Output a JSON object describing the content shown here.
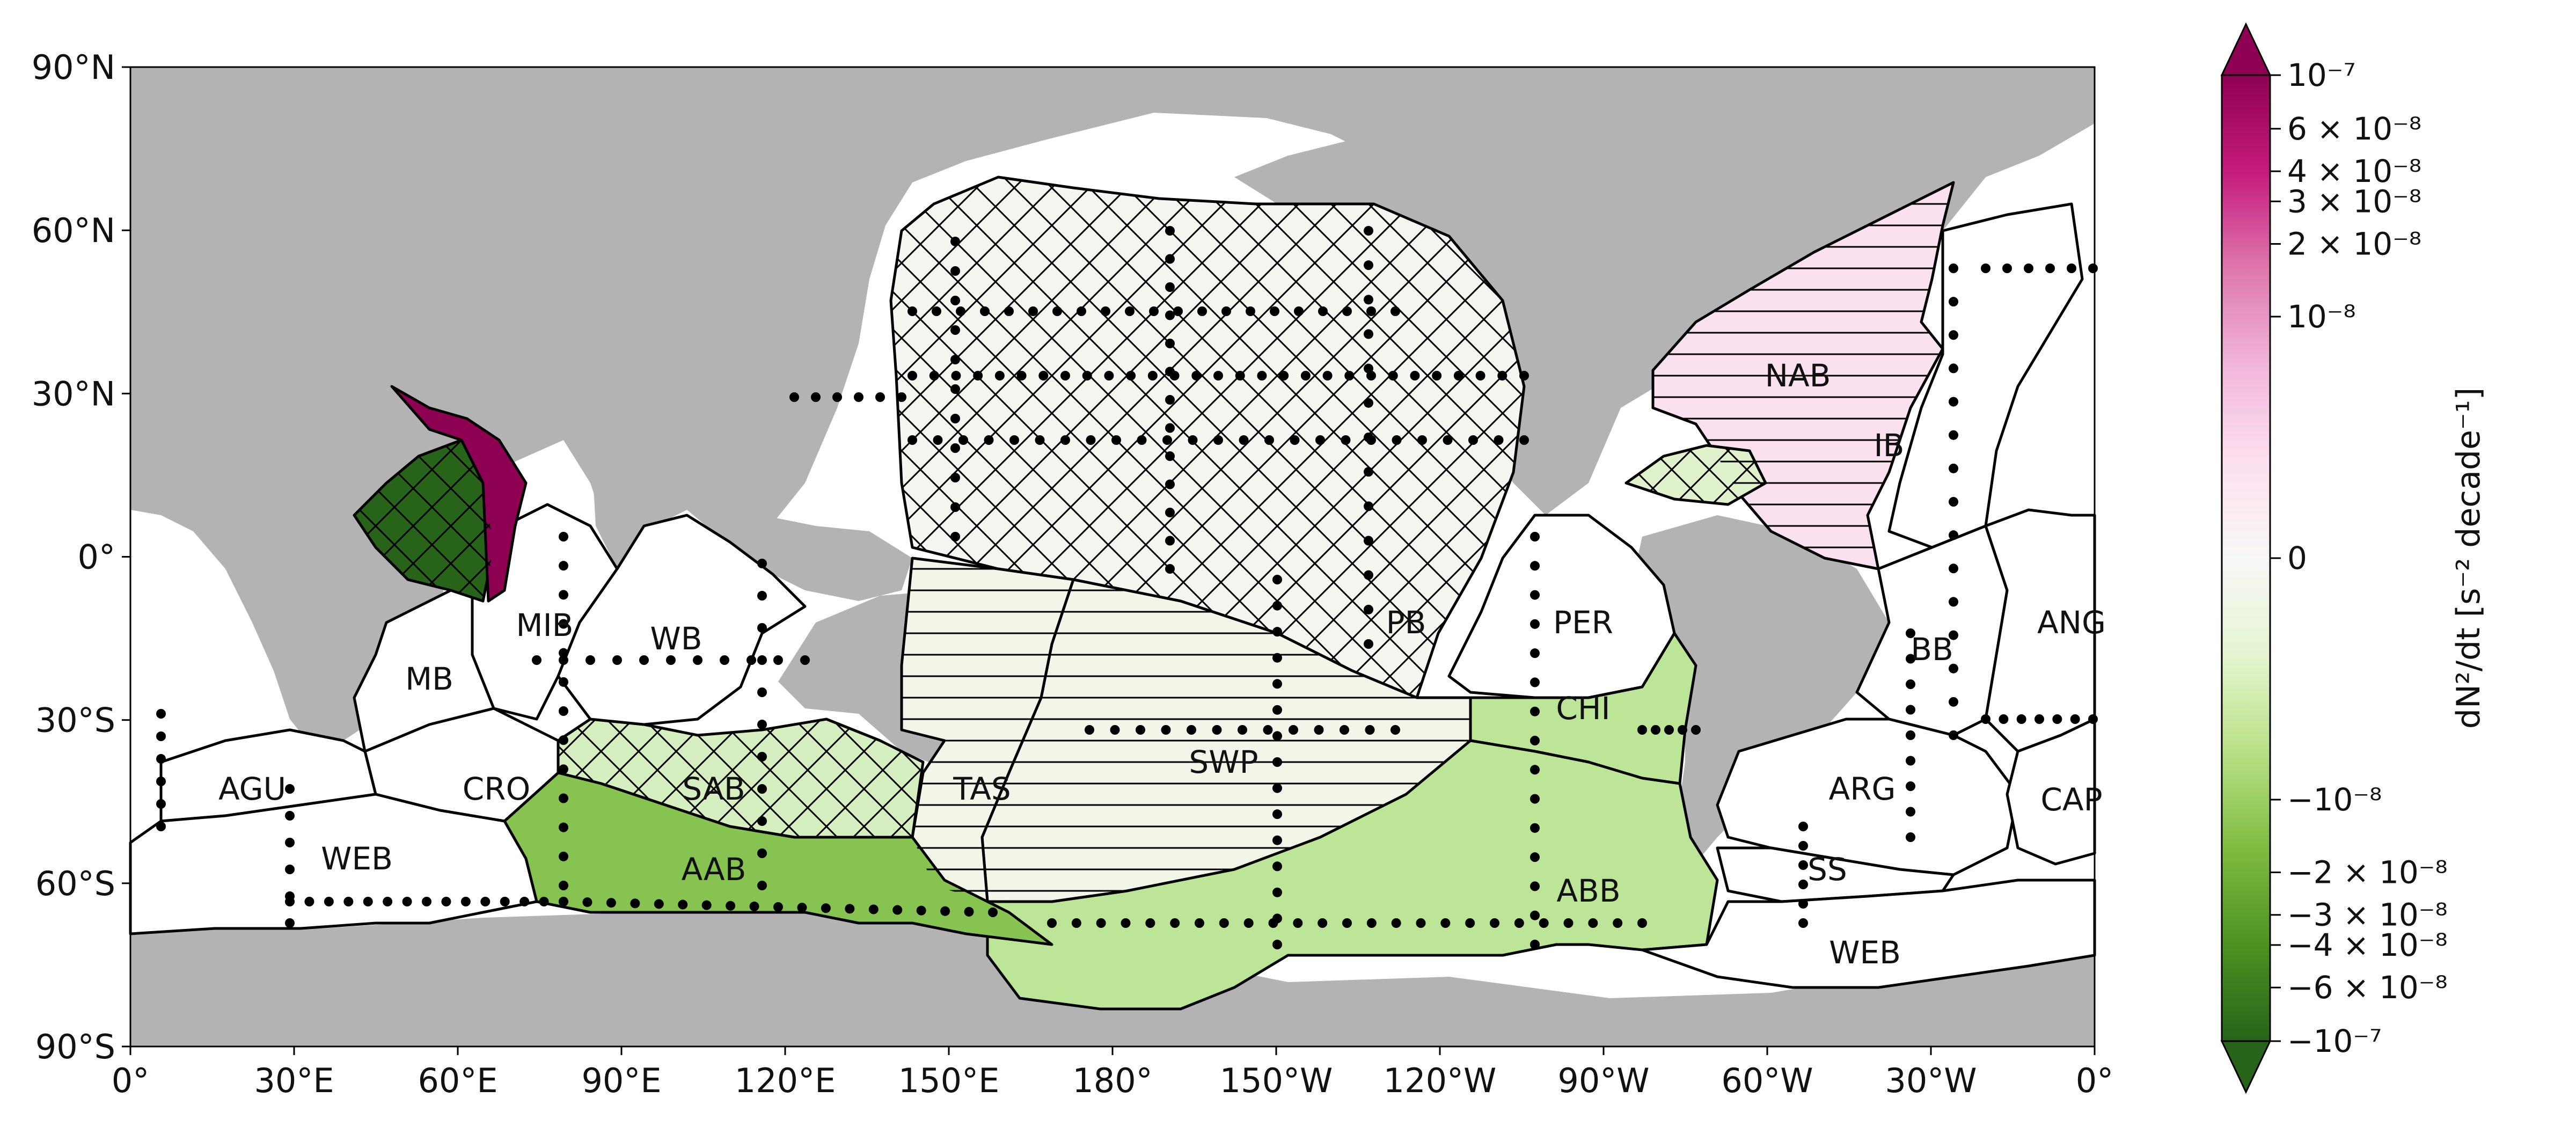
{
  "map": {
    "projection": "PlateCarree",
    "lon_range": [
      0,
      360
    ],
    "lat_range": [
      -90,
      90
    ],
    "land_color": "#b3b3b3",
    "ocean_color": "#ffffff",
    "x_ticks": [
      {
        "lon": 0,
        "label": "0°"
      },
      {
        "lon": 30,
        "label": "30°E"
      },
      {
        "lon": 60,
        "label": "60°E"
      },
      {
        "lon": 90,
        "label": "90°E"
      },
      {
        "lon": 120,
        "label": "120°E"
      },
      {
        "lon": 150,
        "label": "150°E"
      },
      {
        "lon": 180,
        "label": "180°"
      },
      {
        "lon": 210,
        "label": "150°W"
      },
      {
        "lon": 240,
        "label": "120°W"
      },
      {
        "lon": 270,
        "label": "90°W"
      },
      {
        "lon": 300,
        "label": "60°W"
      },
      {
        "lon": 330,
        "label": "30°W"
      },
      {
        "lon": 360,
        "label": "0°"
      }
    ],
    "y_ticks": [
      {
        "lat": 90,
        "label": "90°N"
      },
      {
        "lat": 60,
        "label": "60°N"
      },
      {
        "lat": 30,
        "label": "30°N"
      },
      {
        "lat": 0,
        "label": "0°"
      },
      {
        "lat": -30,
        "label": "30°S"
      },
      {
        "lat": -60,
        "label": "60°S"
      },
      {
        "lat": -90,
        "label": "90°S"
      }
    ]
  },
  "basins": [
    {
      "id": "NAB",
      "label": "NAB",
      "color": "#fbe0ef",
      "hatch": "horizontal"
    },
    {
      "id": "IB",
      "label": "IB",
      "color": "#ffffff",
      "hatch": "none"
    },
    {
      "id": "PB",
      "label": "PB",
      "color": "#f3f7ef",
      "hatch": "cross"
    },
    {
      "id": "PER",
      "label": "PER",
      "color": "#ffffff",
      "hatch": "none"
    },
    {
      "id": "ANG",
      "label": "ANG",
      "color": "#ffffff",
      "hatch": "none"
    },
    {
      "id": "BB",
      "label": "BB",
      "color": "#ffffff",
      "hatch": "none"
    },
    {
      "id": "CHI",
      "label": "CHI",
      "color": "#bde597",
      "hatch": "none"
    },
    {
      "id": "ARG",
      "label": "ARG",
      "color": "#ffffff",
      "hatch": "none"
    },
    {
      "id": "CAP",
      "label": "CAP",
      "color": "#ffffff",
      "hatch": "none"
    },
    {
      "id": "SS",
      "label": "SS",
      "color": "#ffffff",
      "hatch": "none"
    },
    {
      "id": "WEB_E",
      "label": "WEB",
      "color": "#ffffff",
      "hatch": "none"
    },
    {
      "id": "ABB",
      "label": "ABB",
      "color": "#bde597",
      "hatch": "none"
    },
    {
      "id": "SWP",
      "label": "SWP",
      "color": "#f1f6e8",
      "hatch": "horizontal"
    },
    {
      "id": "TAS",
      "label": "TAS",
      "color": "#f1f6e8",
      "hatch": "horizontal"
    },
    {
      "id": "SAB",
      "label": "SAB",
      "color": "#d6efc0",
      "hatch": "cross"
    },
    {
      "id": "AAB",
      "label": "AAB",
      "color": "#86c350",
      "hatch": "none"
    },
    {
      "id": "CRO",
      "label": "CRO",
      "color": "#ffffff",
      "hatch": "none"
    },
    {
      "id": "AGU",
      "label": "AGU",
      "color": "#ffffff",
      "hatch": "none"
    },
    {
      "id": "WEB_W",
      "label": "WEB",
      "color": "#ffffff",
      "hatch": "none"
    },
    {
      "id": "MIB",
      "label": "MIB",
      "color": "#ffffff",
      "hatch": "none"
    },
    {
      "id": "WB",
      "label": "WB",
      "color": "#ffffff",
      "hatch": "none"
    },
    {
      "id": "MB",
      "label": "MB",
      "color": "#ffffff",
      "hatch": "none"
    },
    {
      "id": "SOM",
      "label": "",
      "color": "#276419",
      "hatch": "cross"
    },
    {
      "id": "ARAB",
      "label": "",
      "color": "#8e0152",
      "hatch": "none"
    },
    {
      "id": "CAR",
      "label": "",
      "color": "#dff2cb",
      "hatch": "cross"
    }
  ],
  "colorbar": {
    "title": "dN²/dt [s⁻² decade⁻¹]",
    "scale": "symlog",
    "extend": "both",
    "cmap": "PiYG_r",
    "ticks": [
      {
        "value": 1e-07,
        "label": "10⁻⁷"
      },
      {
        "value": 6e-08,
        "label": "6 × 10⁻⁸"
      },
      {
        "value": 4e-08,
        "label": "4 × 10⁻⁸"
      },
      {
        "value": 3e-08,
        "label": "3 × 10⁻⁸"
      },
      {
        "value": 2e-08,
        "label": "2 × 10⁻⁸"
      },
      {
        "value": 1e-08,
        "label": "10⁻⁸"
      },
      {
        "value": 0,
        "label": "0"
      },
      {
        "value": -1e-08,
        "label": "−10⁻⁸"
      },
      {
        "value": -2e-08,
        "label": "−2 × 10⁻⁸"
      },
      {
        "value": -3e-08,
        "label": "−3 × 10⁻⁸"
      },
      {
        "value": -4e-08,
        "label": "−4 × 10⁻⁸"
      },
      {
        "value": -6e-08,
        "label": "−6 × 10⁻⁸"
      },
      {
        "value": -1e-07,
        "label": "−10⁻⁷"
      }
    ],
    "colors": [
      "#276419",
      "#4d9221",
      "#7fbc41",
      "#b8e186",
      "#e6f5d0",
      "#f7f7f7",
      "#fde0ef",
      "#f1b6da",
      "#de77ae",
      "#c51b7d",
      "#8e0152"
    ]
  }
}
